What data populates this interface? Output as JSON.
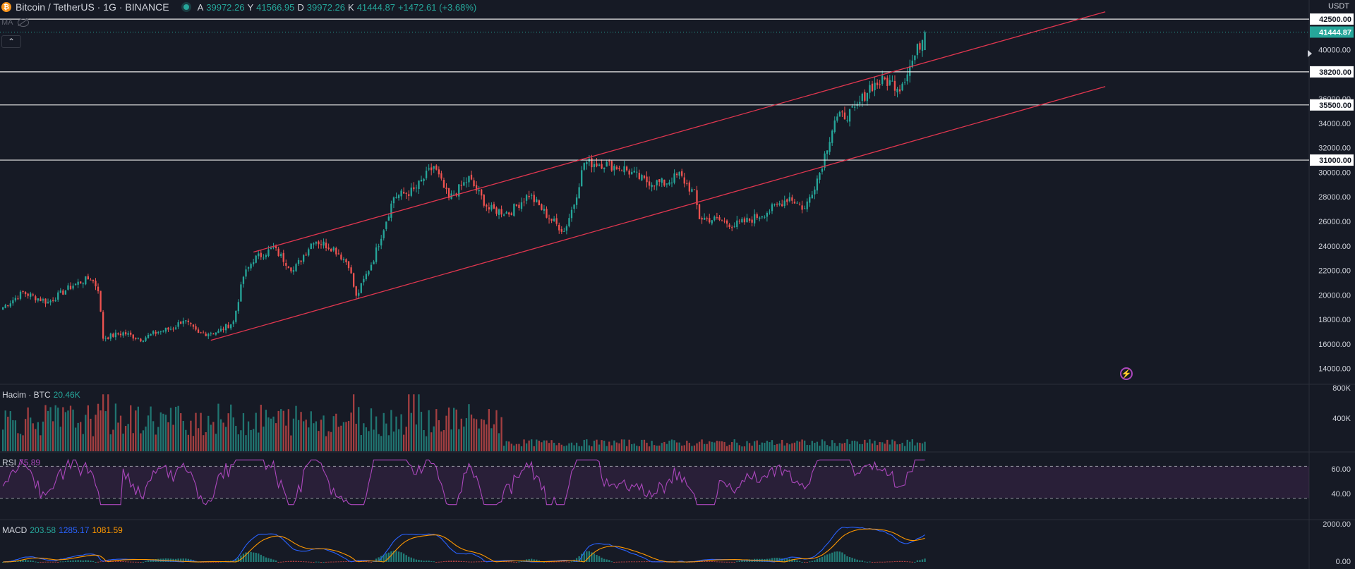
{
  "header": {
    "coin_badge": "₿",
    "symbol": "Bitcoin / TetherUS · 1G · BINANCE",
    "ohlc": [
      {
        "label": "A",
        "value": "39972.26"
      },
      {
        "label": "Y",
        "value": "41566.95"
      },
      {
        "label": "D",
        "value": "39972.26"
      },
      {
        "label": "K",
        "value": "41444.87"
      },
      {
        "label": "",
        "value": "+1472.61 (+3.68%)"
      }
    ],
    "ma_label": "MA",
    "currency": "USDT"
  },
  "colors": {
    "background": "#161a25",
    "up": "#26a69a",
    "down": "#ef5350",
    "channel": "#e0364f",
    "rsi": "#ab47bc",
    "macd": "#2962ff",
    "signal": "#ff9800"
  },
  "icons": [
    "bitcoin-icon",
    "live-status-icon",
    "eye-off-icon",
    "chevron-up-icon",
    "bolt-icon",
    "play-icon"
  ],
  "chart_data": [
    {
      "type": "candlestick",
      "title": "Bitcoin / TetherUS · 1G · BINANCE",
      "ylim": [
        13000,
        43600
      ],
      "y_ticks": [
        14000,
        16000,
        18000,
        20000,
        22000,
        24000,
        26000,
        28000,
        30000,
        32000,
        34000,
        36000,
        40000
      ],
      "y_tick_labels": [
        "14000.00",
        "16000.00",
        "18000.00",
        "20000.00",
        "22000.00",
        "24000.00",
        "26000.00",
        "28000.00",
        "30000.00",
        "32000.00",
        "34000.00",
        "36000.00",
        "40000.00"
      ],
      "horizontal_levels": [
        {
          "value": 42500,
          "label": "42500.00"
        },
        {
          "value": 38200,
          "label": "38200.00"
        },
        {
          "value": 35500,
          "label": "35500.00"
        },
        {
          "value": 31000,
          "label": "31000.00"
        }
      ],
      "last_price": {
        "value": 41444.87,
        "label": "41444.87"
      },
      "channel_lines": [
        {
          "from_bar": 100,
          "from": 23500,
          "to_bar": 440,
          "to": 43100
        },
        {
          "from_bar": 83,
          "from": 16300,
          "to_bar": 440,
          "to": 37000
        }
      ],
      "anchors": [
        [
          0,
          19000
        ],
        [
          8,
          20200
        ],
        [
          18,
          19400
        ],
        [
          28,
          20800
        ],
        [
          35,
          21400
        ],
        [
          38,
          20500
        ],
        [
          40,
          16500
        ],
        [
          48,
          16900
        ],
        [
          55,
          16400
        ],
        [
          62,
          17000
        ],
        [
          68,
          17300
        ],
        [
          72,
          18000
        ],
        [
          78,
          16800
        ],
        [
          86,
          17000
        ],
        [
          92,
          17800
        ],
        [
          96,
          21500
        ],
        [
          100,
          22900
        ],
        [
          108,
          23800
        ],
        [
          116,
          22000
        ],
        [
          124,
          24500
        ],
        [
          132,
          23800
        ],
        [
          138,
          22500
        ],
        [
          141,
          19800
        ],
        [
          148,
          23000
        ],
        [
          156,
          28000
        ],
        [
          164,
          28500
        ],
        [
          172,
          30500
        ],
        [
          178,
          27800
        ],
        [
          186,
          29500
        ],
        [
          194,
          27000
        ],
        [
          202,
          26700
        ],
        [
          210,
          28200
        ],
        [
          218,
          26300
        ],
        [
          224,
          25200
        ],
        [
          228,
          27500
        ],
        [
          232,
          30800
        ],
        [
          240,
          30700
        ],
        [
          248,
          30300
        ],
        [
          256,
          29300
        ],
        [
          264,
          29100
        ],
        [
          270,
          29800
        ],
        [
          276,
          28200
        ],
        [
          278,
          26300
        ],
        [
          286,
          26100
        ],
        [
          292,
          25700
        ],
        [
          298,
          26100
        ],
        [
          306,
          26900
        ],
        [
          314,
          28000
        ],
        [
          320,
          27000
        ],
        [
          326,
          30000
        ],
        [
          332,
          34300
        ],
        [
          340,
          35000
        ],
        [
          346,
          37000
        ],
        [
          352,
          37500
        ],
        [
          358,
          37000
        ],
        [
          364,
          39500
        ],
        [
          368,
          41444
        ]
      ],
      "series_names": {
        "volume": "Hacim · BTC",
        "rsi": "RSI",
        "macd": "MACD"
      }
    },
    {
      "type": "bar",
      "title": "Hacim · BTC",
      "last_value": "20.46K",
      "y_ticks": [
        "800K",
        "400K"
      ]
    },
    {
      "type": "line",
      "title": "RSI",
      "last_value": "75.89",
      "bands": [
        70,
        30
      ],
      "y_ticks": [
        "60.00",
        "40.00"
      ]
    },
    {
      "type": "line",
      "title": "MACD",
      "values": [
        "203.58",
        "1285.17",
        "1081.59"
      ],
      "y_ticks": [
        "2000.00",
        "0.00"
      ]
    }
  ]
}
